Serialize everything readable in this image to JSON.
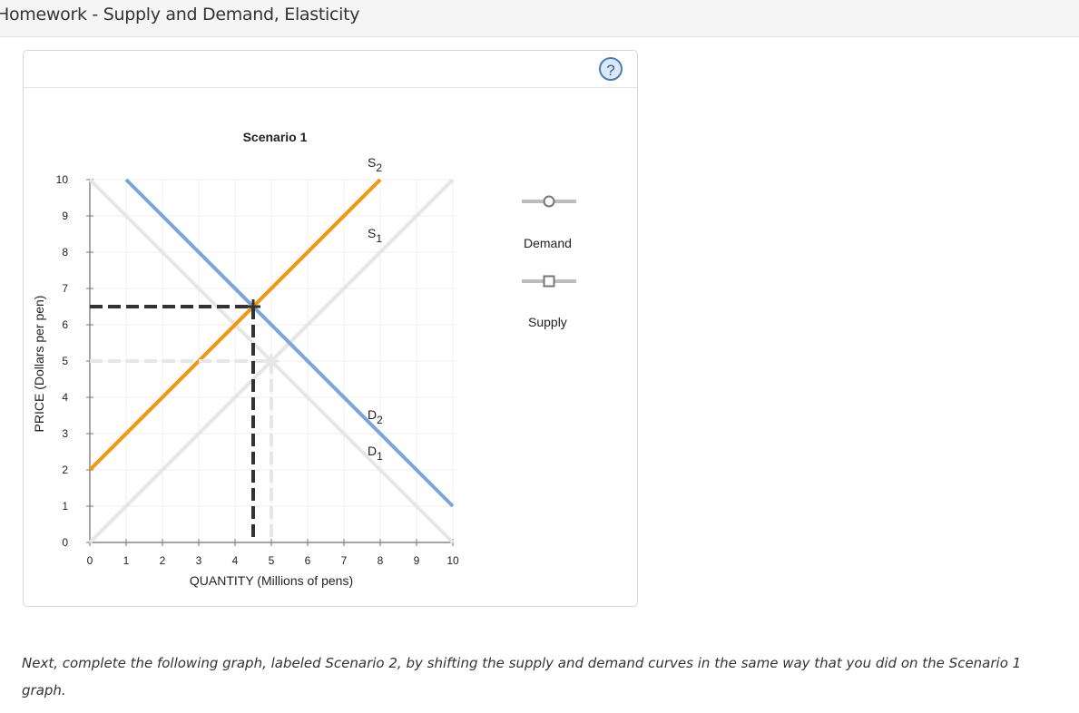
{
  "header": {
    "title": "Homework - Supply and Demand, Elasticity"
  },
  "panel": {
    "help_icon": "?"
  },
  "legend": {
    "items": [
      {
        "label": "Demand",
        "marker": "circle"
      },
      {
        "label": "Supply",
        "marker": "square"
      }
    ]
  },
  "instructions": "Next, complete the following graph, labeled Scenario 2, by shifting the supply and demand curves in the same way that you did on the Scenario 1 graph.",
  "colors": {
    "demand_new": "#7ca7d4",
    "supply_new": "#f6960f",
    "original_curves": "#e6e6e6",
    "equilibrium_new": "#333333",
    "equilibrium_old": "#e6e6e6",
    "help_icon": "#4a7fb5"
  },
  "chart_data": {
    "type": "line",
    "title": "Scenario 1",
    "xlabel": "QUANTITY (Millions of pens)",
    "ylabel": "PRICE (Dollars per pen)",
    "xlim": [
      0,
      10
    ],
    "ylim": [
      0,
      10
    ],
    "xticks": [
      "0",
      "1",
      "2",
      "3",
      "4",
      "5",
      "6",
      "7",
      "8",
      "9",
      "10"
    ],
    "yticks": [
      "0",
      "1",
      "2",
      "3",
      "4",
      "5",
      "6",
      "7",
      "8",
      "9",
      "10"
    ],
    "grid": true,
    "legend_position": "right",
    "series": [
      {
        "name": "D1",
        "label_main": "D",
        "label_sub": "1",
        "color": "#e6e6e6",
        "x": [
          0,
          10
        ],
        "y": [
          10,
          0
        ]
      },
      {
        "name": "S1",
        "label_main": "S",
        "label_sub": "1",
        "color": "#e6e6e6",
        "x": [
          0,
          10
        ],
        "y": [
          0,
          10
        ]
      },
      {
        "name": "D2",
        "label_main": "D",
        "label_sub": "2",
        "color": "#7ca7d4",
        "x": [
          1,
          10
        ],
        "y": [
          10,
          1
        ]
      },
      {
        "name": "S2",
        "label_main": "S",
        "label_sub": "2",
        "color": "#f6960f",
        "x": [
          0,
          8
        ],
        "y": [
          2,
          10
        ]
      }
    ],
    "equilibria": [
      {
        "name": "original",
        "x": 5,
        "y": 5,
        "color": "#e6e6e6",
        "style": "dashed"
      },
      {
        "name": "new",
        "x": 4.5,
        "y": 6.5,
        "color": "#333333",
        "style": "dashed"
      }
    ]
  }
}
